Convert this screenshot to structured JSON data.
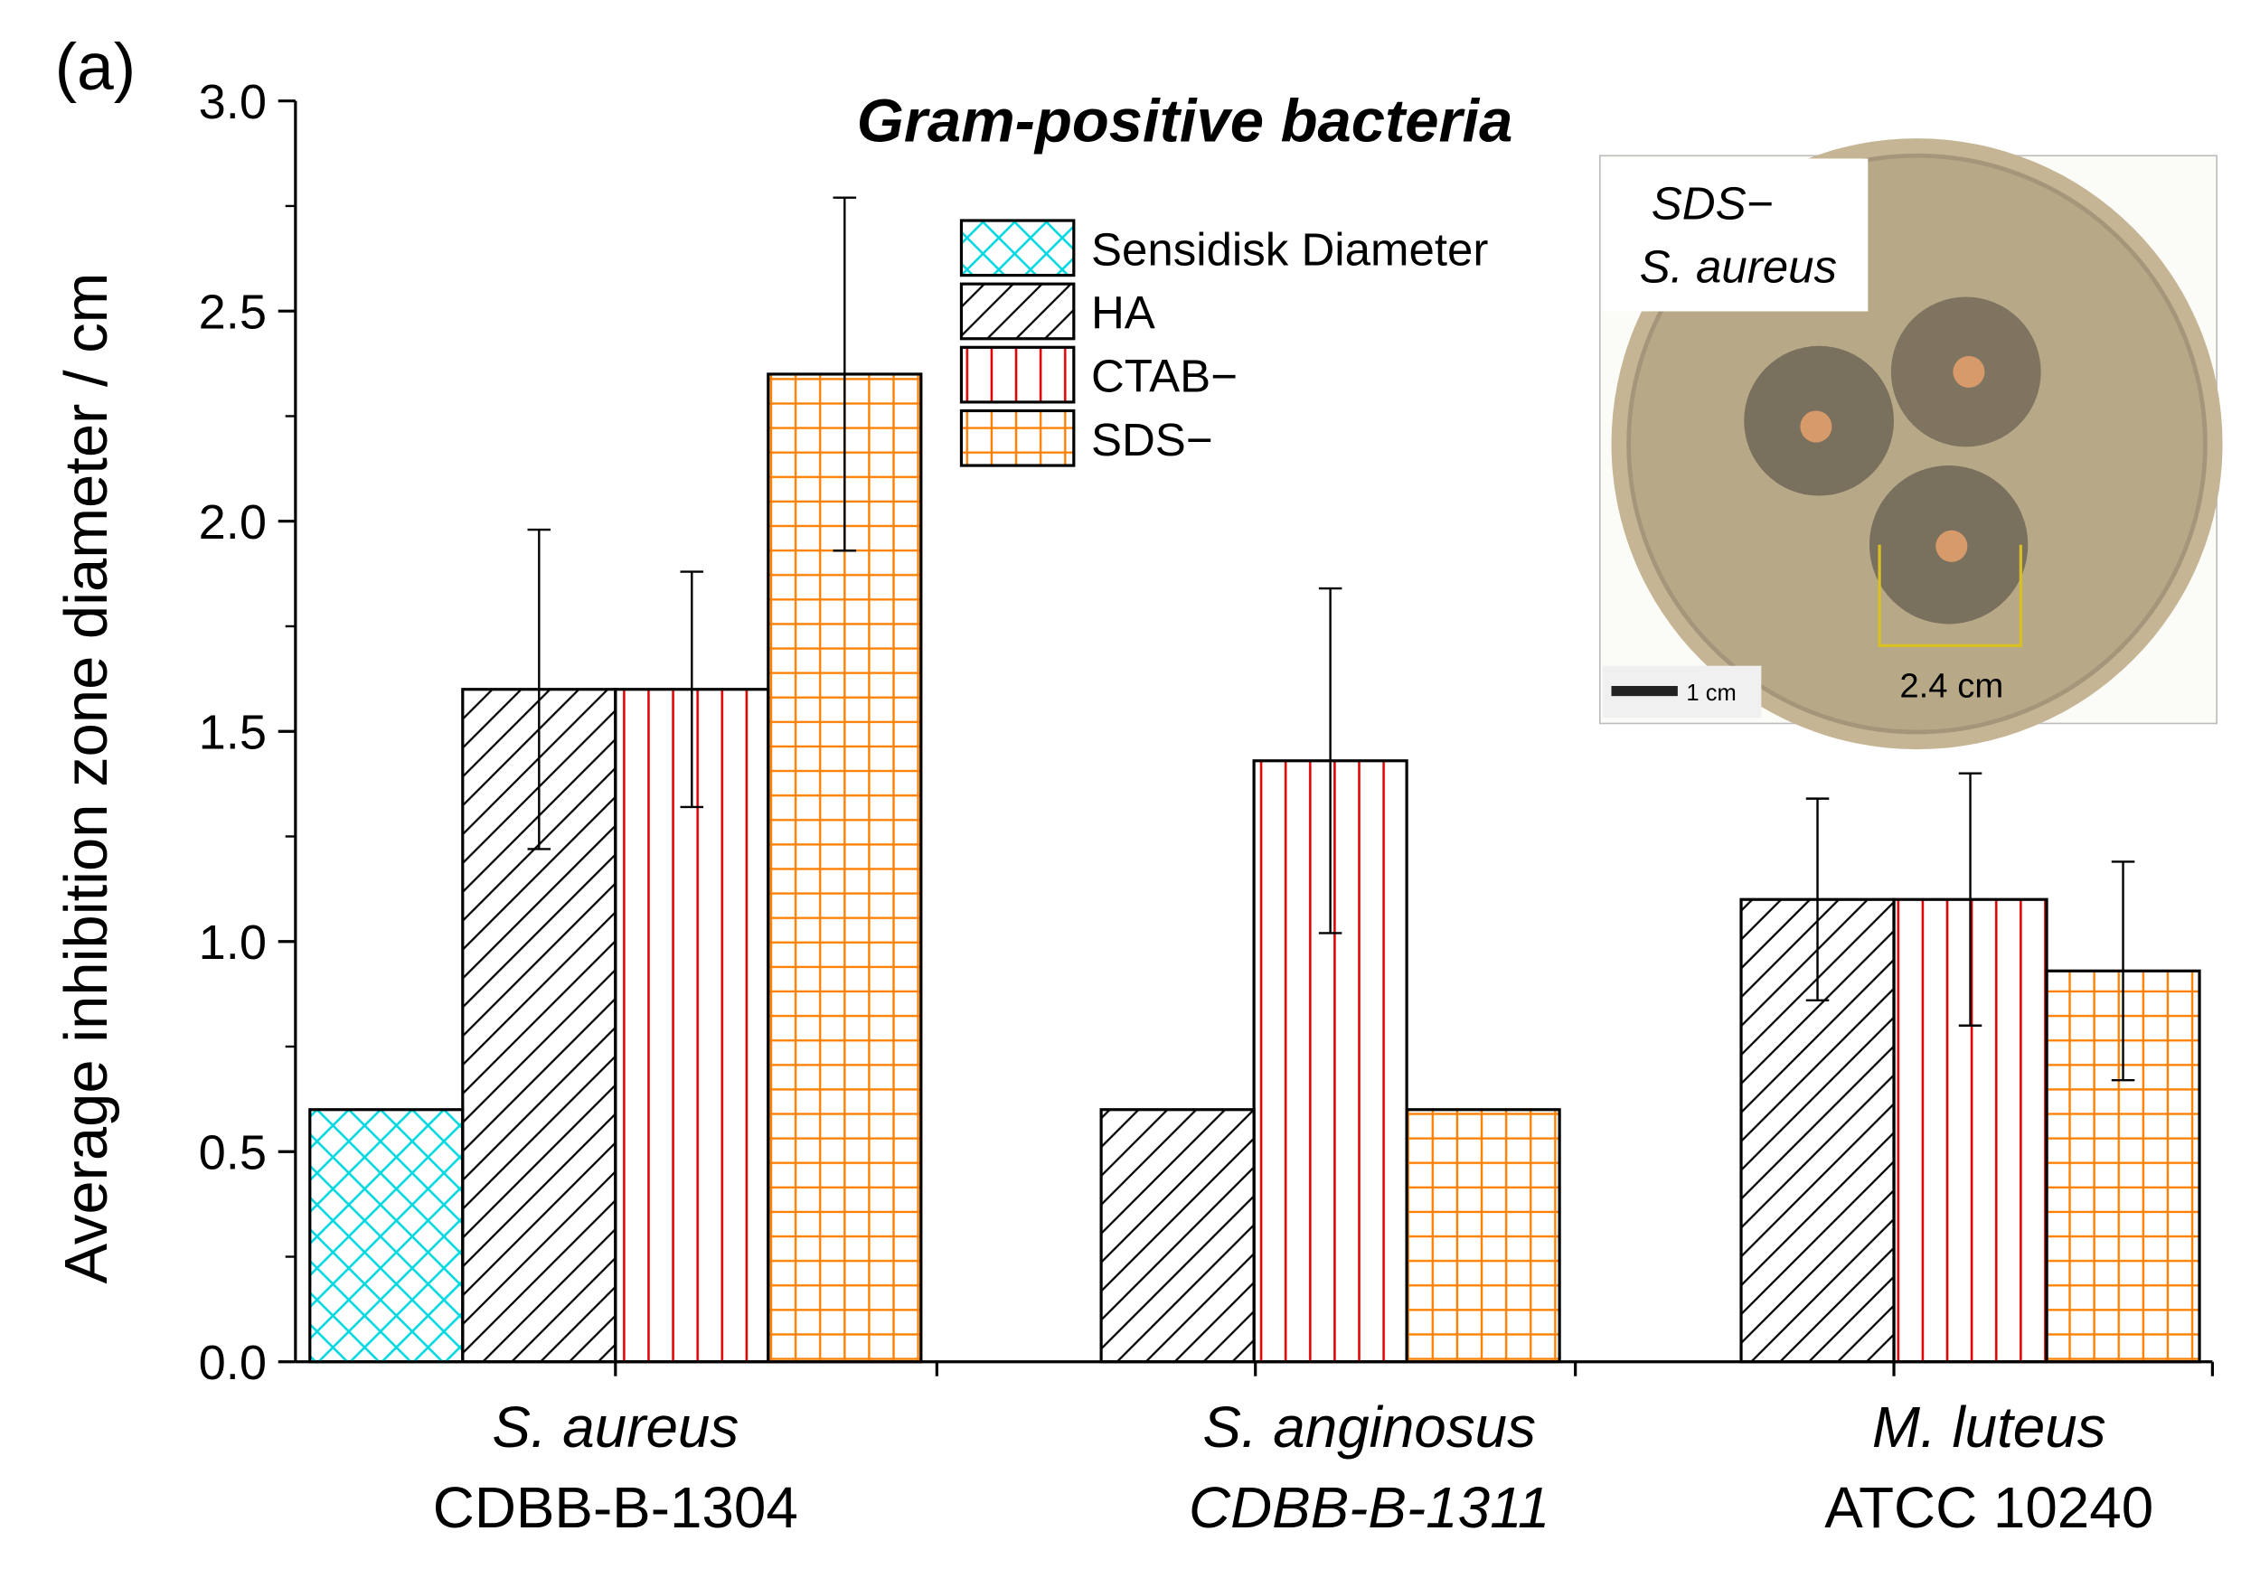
{
  "panel_label": "(a)",
  "chart_data": {
    "type": "bar",
    "title": "Gram-positive bacteria",
    "y_label": "Average inhibition zone diameter / cm",
    "categories": [
      {
        "species": "S. aureus",
        "strain": "CDBB-B-1304"
      },
      {
        "species": "S. anginosus",
        "strain": "CDBB-B-1311"
      },
      {
        "species": "M. luteus",
        "strain": "ATCC 10240"
      }
    ],
    "series": [
      {
        "name": "Sensidisk Diameter",
        "color": "#00d8e0",
        "hatch": "cross",
        "values": [
          0.6,
          null,
          null
        ],
        "errors": [
          null,
          null,
          null
        ]
      },
      {
        "name": "HA",
        "color": "#000000",
        "hatch": "diagonal",
        "values": [
          1.6,
          0.6,
          1.1
        ],
        "errors": [
          0.38,
          null,
          0.24
        ]
      },
      {
        "name": "CTAB−",
        "color": "#e00000",
        "hatch": "vertical",
        "values": [
          1.6,
          1.43,
          1.1
        ],
        "errors": [
          0.28,
          0.41,
          0.3
        ]
      },
      {
        "name": "SDS−",
        "color": "#ff8000",
        "hatch": "grid",
        "values": [
          2.35,
          0.6,
          0.93
        ],
        "errors": [
          0.42,
          null,
          0.26
        ]
      }
    ],
    "ylim": [
      0,
      3
    ],
    "yticks": [
      {
        "value": 0,
        "label": "0.0"
      },
      0.5,
      {
        "value": 1,
        "label": "1.0"
      },
      1.5,
      {
        "value": 2,
        "label": "2.0"
      },
      2.5,
      {
        "value": 3,
        "label": "3.0"
      }
    ],
    "legend": "top-center",
    "inset": {
      "label_lines": [
        "SDS−",
        "S. aureus"
      ],
      "scale_bar": "1 cm",
      "measure": "2.4 cm"
    }
  }
}
